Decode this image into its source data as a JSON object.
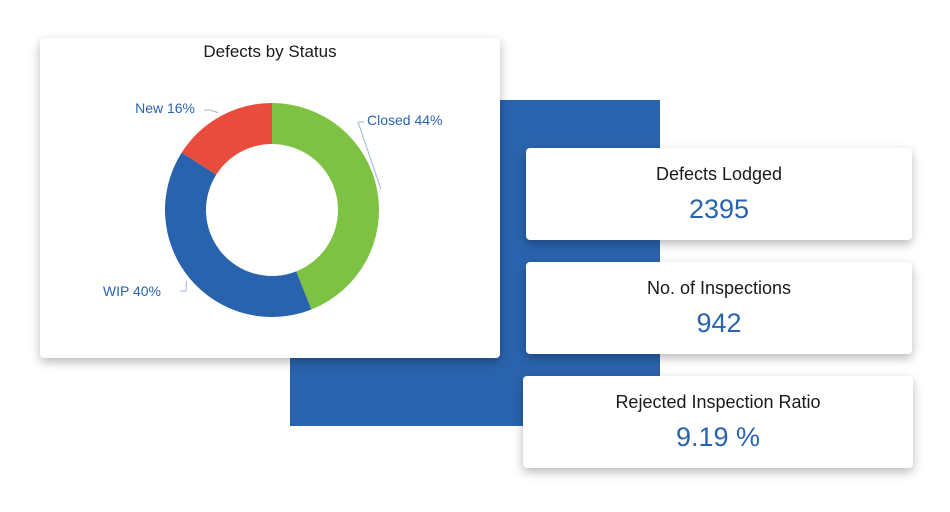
{
  "chart_data": {
    "type": "pie",
    "title": "Defects by Status",
    "donut": true,
    "slices": [
      {
        "name": "Closed",
        "value": 44,
        "label": "Closed 44%",
        "color": "#7dc242"
      },
      {
        "name": "WIP",
        "value": 40,
        "label": "WIP 40%",
        "color": "#2a63ad"
      },
      {
        "name": "New",
        "value": 16,
        "label": "New 16%",
        "color": "#e84c3d"
      }
    ],
    "legend": "none"
  },
  "kpis": [
    {
      "title": "Defects Lodged",
      "value": "2395"
    },
    {
      "title": "No. of Inspections",
      "value": "942"
    },
    {
      "title": "Rejected Inspection Ratio",
      "value": "9.19 %"
    }
  ],
  "colors": {
    "accent": "#2a63ad",
    "closed": "#7dc242",
    "wip": "#2a63ad",
    "new": "#e84c3d"
  }
}
